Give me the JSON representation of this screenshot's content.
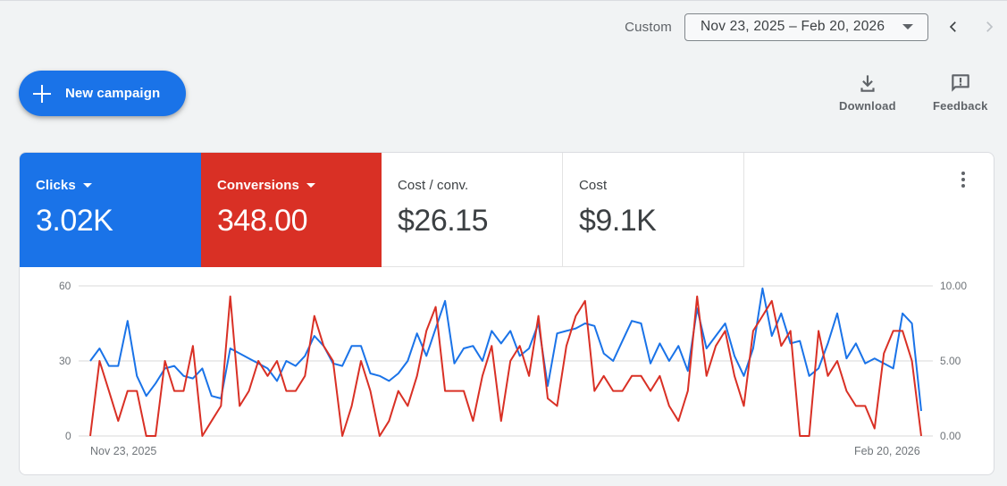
{
  "header": {
    "range_type": "Custom",
    "date_range": "Nov 23, 2025 – Feb 20, 2026",
    "prev_icon": "chevron-left-icon",
    "next_icon": "chevron-right-icon"
  },
  "actions": {
    "new_campaign": "New campaign",
    "download": "Download",
    "feedback": "Feedback"
  },
  "metrics": [
    {
      "label": "Clicks",
      "value": "3.02K",
      "color": "#1a73e8",
      "selected": true
    },
    {
      "label": "Conversions",
      "value": "348.00",
      "color": "#d93025",
      "selected": true
    },
    {
      "label": "Cost / conv.",
      "value": "$26.15",
      "selected": false
    },
    {
      "label": "Cost",
      "value": "$9.1K",
      "selected": false
    }
  ],
  "chart_data": {
    "type": "line",
    "x_start": "Nov 23, 2025",
    "x_end": "Feb 20, 2026",
    "x_tick_labels": [
      "Nov 23, 2025",
      "Feb 20, 2026"
    ],
    "left_axis": {
      "ticks": [
        "0",
        "30",
        "60"
      ],
      "range": [
        0,
        60
      ]
    },
    "right_axis": {
      "ticks": [
        "0.00",
        "5.00",
        "10.00"
      ],
      "range": [
        0,
        10
      ]
    },
    "grid": true,
    "series": [
      {
        "name": "Clicks",
        "axis": "left",
        "color": "#1a73e8",
        "values": [
          30,
          35,
          28,
          28,
          46,
          24,
          16,
          21,
          27,
          28,
          24,
          23,
          27,
          16,
          15,
          35,
          33,
          31,
          29,
          27,
          22,
          30,
          28,
          32,
          40,
          36,
          29,
          28,
          36,
          36,
          25,
          24,
          22,
          25,
          30,
          41,
          32,
          43,
          54,
          29,
          35,
          36,
          30,
          42,
          37,
          42,
          32,
          35,
          45,
          20,
          41,
          42,
          43,
          45,
          44,
          33,
          30,
          38,
          46,
          45,
          29,
          37,
          30,
          36,
          26,
          51,
          35,
          40,
          45,
          32,
          24,
          35,
          59,
          40,
          49,
          37,
          38,
          24,
          27,
          37,
          49,
          31,
          37,
          29,
          31,
          29,
          27,
          49,
          45,
          10
        ]
      },
      {
        "name": "Conversions",
        "axis": "right",
        "color": "#d93025",
        "values": [
          0,
          5,
          3,
          1,
          3,
          3,
          0,
          0,
          5,
          3,
          3,
          6,
          0,
          1,
          2,
          9.3,
          2,
          3,
          5,
          4,
          5,
          3,
          3,
          4,
          8,
          6,
          5,
          0,
          2,
          5,
          3,
          0,
          1,
          3,
          2,
          4,
          7,
          8.6,
          3,
          3,
          3,
          1,
          4,
          6,
          1,
          5,
          6,
          4,
          8,
          2.5,
          2,
          6,
          8,
          9,
          3,
          4,
          3,
          3,
          4,
          4,
          3,
          4,
          2,
          1,
          3,
          9.3,
          4,
          6,
          7,
          4,
          2,
          7,
          8,
          9,
          6,
          7,
          0,
          0,
          7,
          4,
          5,
          3,
          2,
          2,
          0.5,
          5.5,
          7,
          7,
          5,
          0
        ]
      }
    ]
  },
  "colors": {
    "clicks": "#1a73e8",
    "conversions": "#d93025",
    "grid": "#e0e0e0"
  }
}
